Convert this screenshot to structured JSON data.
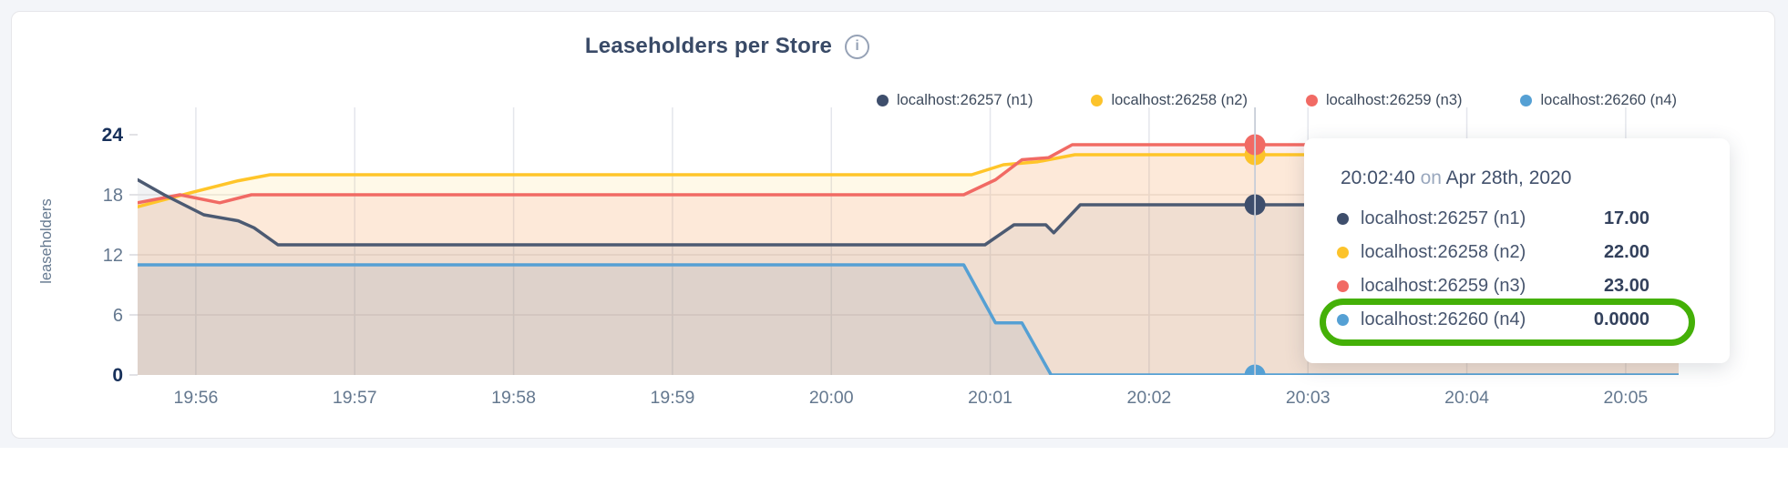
{
  "chart": {
    "title": "Leaseholders per Store",
    "info_icon_glyph": "i",
    "legend": [
      {
        "label": "localhost:26257 (n1)",
        "color": "#3E4E6C"
      },
      {
        "label": "localhost:26258 (n2)",
        "color": "#FCC32B"
      },
      {
        "label": "localhost:26259 (n3)",
        "color": "#F16A64"
      },
      {
        "label": "localhost:26260 (n4)",
        "color": "#55A0D4"
      }
    ]
  },
  "tooltip": {
    "time": "20:02:40",
    "conjunction": "on",
    "date": "Apr 28th, 2020",
    "rows": [
      {
        "label": "localhost:26257 (n1)",
        "value": "17.00",
        "color": "#3E4E6C",
        "highlighted": false
      },
      {
        "label": "localhost:26258 (n2)",
        "value": "22.00",
        "color": "#FCC32B",
        "highlighted": false
      },
      {
        "label": "localhost:26259 (n3)",
        "value": "23.00",
        "color": "#F16A64",
        "highlighted": false
      },
      {
        "label": "localhost:26260 (n4)",
        "value": "0.0000",
        "color": "#55A0D4",
        "highlighted": true
      }
    ],
    "highlight_color": "#44B007"
  },
  "chart_data": {
    "type": "area",
    "title": "Leaseholders per Store",
    "ylabel": "leaseholders",
    "ylim": [
      0,
      24
    ],
    "grid": true,
    "legend_position": "top-right",
    "x_start_time": "19:55:38",
    "x_end_time": "20:05:20",
    "x_ticks": [
      {
        "t": 22,
        "label": "19:56"
      },
      {
        "t": 82,
        "label": "19:57"
      },
      {
        "t": 142,
        "label": "19:58"
      },
      {
        "t": 202,
        "label": "19:59"
      },
      {
        "t": 262,
        "label": "20:00"
      },
      {
        "t": 322,
        "label": "20:01"
      },
      {
        "t": 382,
        "label": "20:02"
      },
      {
        "t": 442,
        "label": "20:03"
      },
      {
        "t": 502,
        "label": "20:04"
      },
      {
        "t": 562,
        "label": "20:05"
      }
    ],
    "y_ticks": [
      {
        "v": 0,
        "label": "0",
        "bold": true
      },
      {
        "v": 6,
        "label": "6",
        "bold": false
      },
      {
        "v": 12,
        "label": "12",
        "bold": false
      },
      {
        "v": 18,
        "label": "18",
        "bold": false
      },
      {
        "v": 24,
        "label": "24",
        "bold": true
      }
    ],
    "series": [
      {
        "name": "localhost:26257 (n1)",
        "line": "#4C5A72",
        "dot": "#3E4E6C",
        "fill": "rgba(71,86,114,0.07)",
        "points": [
          [
            0,
            19.5
          ],
          [
            10,
            18
          ],
          [
            25,
            16
          ],
          [
            38,
            15.4
          ],
          [
            44,
            14.7
          ],
          [
            53,
            13
          ],
          [
            320,
            13
          ],
          [
            331,
            15
          ],
          [
            343,
            15
          ],
          [
            346,
            14.2
          ],
          [
            356,
            17
          ],
          [
            582,
            17
          ]
        ]
      },
      {
        "name": "localhost:26258 (n2)",
        "line": "#FFC529",
        "dot": "#FCC32B",
        "fill": "rgba(255,196,41,0.11)",
        "points": [
          [
            0,
            16.8
          ],
          [
            20,
            18.2
          ],
          [
            38,
            19.4
          ],
          [
            50,
            20
          ],
          [
            315,
            20
          ],
          [
            327,
            21
          ],
          [
            340,
            21.3
          ],
          [
            354,
            22
          ],
          [
            582,
            22
          ]
        ]
      },
      {
        "name": "localhost:26259 (n3)",
        "line": "#F16A64",
        "dot": "#F16A64",
        "fill": "rgba(241,106,101,0.11)",
        "points": [
          [
            0,
            17.2
          ],
          [
            16,
            18
          ],
          [
            31,
            17.2
          ],
          [
            43,
            18
          ],
          [
            312,
            18
          ],
          [
            324,
            19.5
          ],
          [
            334,
            21.5
          ],
          [
            344,
            21.7
          ],
          [
            353,
            23
          ],
          [
            582,
            23
          ]
        ]
      },
      {
        "name": "localhost:26260 (n4)",
        "line": "#55A0D4",
        "dot": "#55A0D4",
        "fill": "rgba(100,130,160,0.13)",
        "points": [
          [
            0,
            11
          ],
          [
            312,
            11
          ],
          [
            324,
            5.2
          ],
          [
            334,
            5.2
          ],
          [
            345,
            0
          ],
          [
            582,
            0
          ]
        ]
      }
    ],
    "hover": {
      "t": 422,
      "time": "20:02:40",
      "date": "Apr 28th, 2020",
      "values": [
        17,
        22,
        23,
        0
      ]
    }
  }
}
